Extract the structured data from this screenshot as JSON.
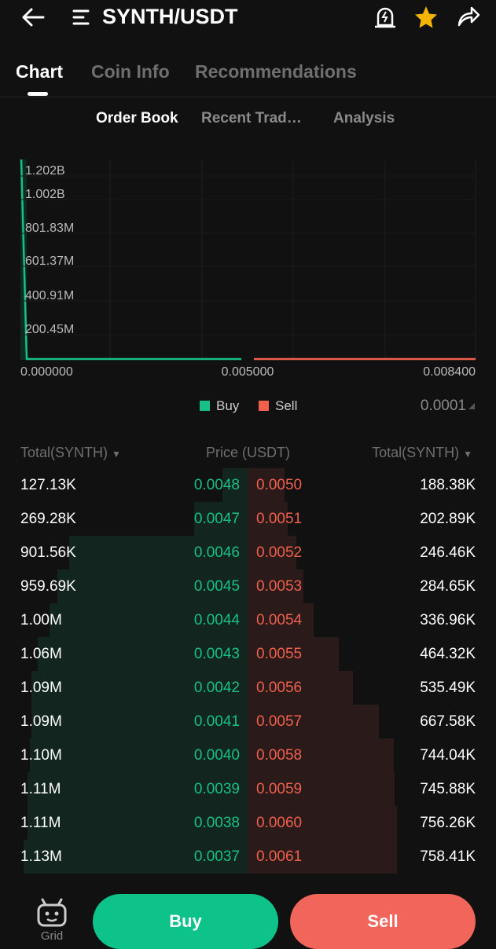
{
  "header": {
    "title": "SYNTH/USDT"
  },
  "tabs": [
    "Chart",
    "Coin Info",
    "Recommendations"
  ],
  "subtabs": [
    "Order Book",
    "Recent Trad…",
    "Analysis"
  ],
  "depth_chart": {
    "yticks": [
      "1.202B",
      "1.002B",
      "801.83M",
      "601.37M",
      "400.91M",
      "200.45M"
    ],
    "xticks": [
      "0.000000",
      "0.005000",
      "0.008400"
    ],
    "legend": [
      "Buy",
      "Sell"
    ],
    "precision": "0.0001"
  },
  "order_book": {
    "columns": [
      "Total(SYNTH)",
      "Price (USDT)",
      "Total(SYNTH)"
    ],
    "rows": [
      [
        "127.13K",
        "0.0048",
        "0.0050",
        "188.38K"
      ],
      [
        "269.28K",
        "0.0047",
        "0.0051",
        "202.89K"
      ],
      [
        "901.56K",
        "0.0046",
        "0.0052",
        "246.46K"
      ],
      [
        "959.69K",
        "0.0045",
        "0.0053",
        "284.65K"
      ],
      [
        "1.00M",
        "0.0044",
        "0.0054",
        "336.96K"
      ],
      [
        "1.06M",
        "0.0043",
        "0.0055",
        "464.32K"
      ],
      [
        "1.09M",
        "0.0042",
        "0.0056",
        "535.49K"
      ],
      [
        "1.09M",
        "0.0041",
        "0.0057",
        "667.58K"
      ],
      [
        "1.10M",
        "0.0040",
        "0.0058",
        "744.04K"
      ],
      [
        "1.11M",
        "0.0039",
        "0.0059",
        "745.88K"
      ],
      [
        "1.11M",
        "0.0038",
        "0.0060",
        "756.26K"
      ],
      [
        "1.13M",
        "0.0037",
        "0.0061",
        "758.41K"
      ]
    ]
  },
  "footer": {
    "grid_label": "Grid",
    "buy": "Buy",
    "sell": "Sell"
  }
}
